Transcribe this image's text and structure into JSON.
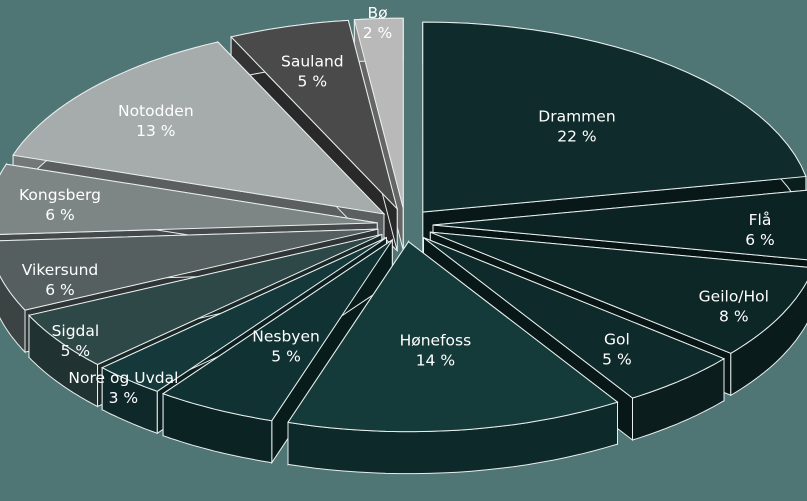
{
  "chart_data": {
    "type": "pie",
    "title": "",
    "categories": [
      "Drammen",
      "Flå",
      "Geilo/Hol",
      "Gol",
      "Hønefoss",
      "Nesbyen",
      "Nore og Uvdal",
      "Sigdal",
      "Vikersund",
      "Kongsberg",
      "Notodden",
      "Sauland",
      "Bø"
    ],
    "values": [
      22,
      6,
      8,
      5,
      14,
      5,
      3,
      5,
      6,
      6,
      13,
      5,
      2
    ],
    "value_labels": [
      "22 %",
      "6 %",
      "8 %",
      "5 %",
      "14 %",
      "5 %",
      "3 %",
      "5 %",
      "6 %",
      "6 %",
      "13 %",
      "5 %",
      "2 %"
    ],
    "colors": [
      "#0f2b2b",
      "#0b2323",
      "#0d2626",
      "#0f2a2a",
      "#143a3a",
      "#113232",
      "#15393b",
      "#2e4747",
      "#555f60",
      "#7d8585",
      "#a6acac",
      "#4a4a4a",
      "#b9b9b9"
    ],
    "exploded": true,
    "three_d": true
  }
}
